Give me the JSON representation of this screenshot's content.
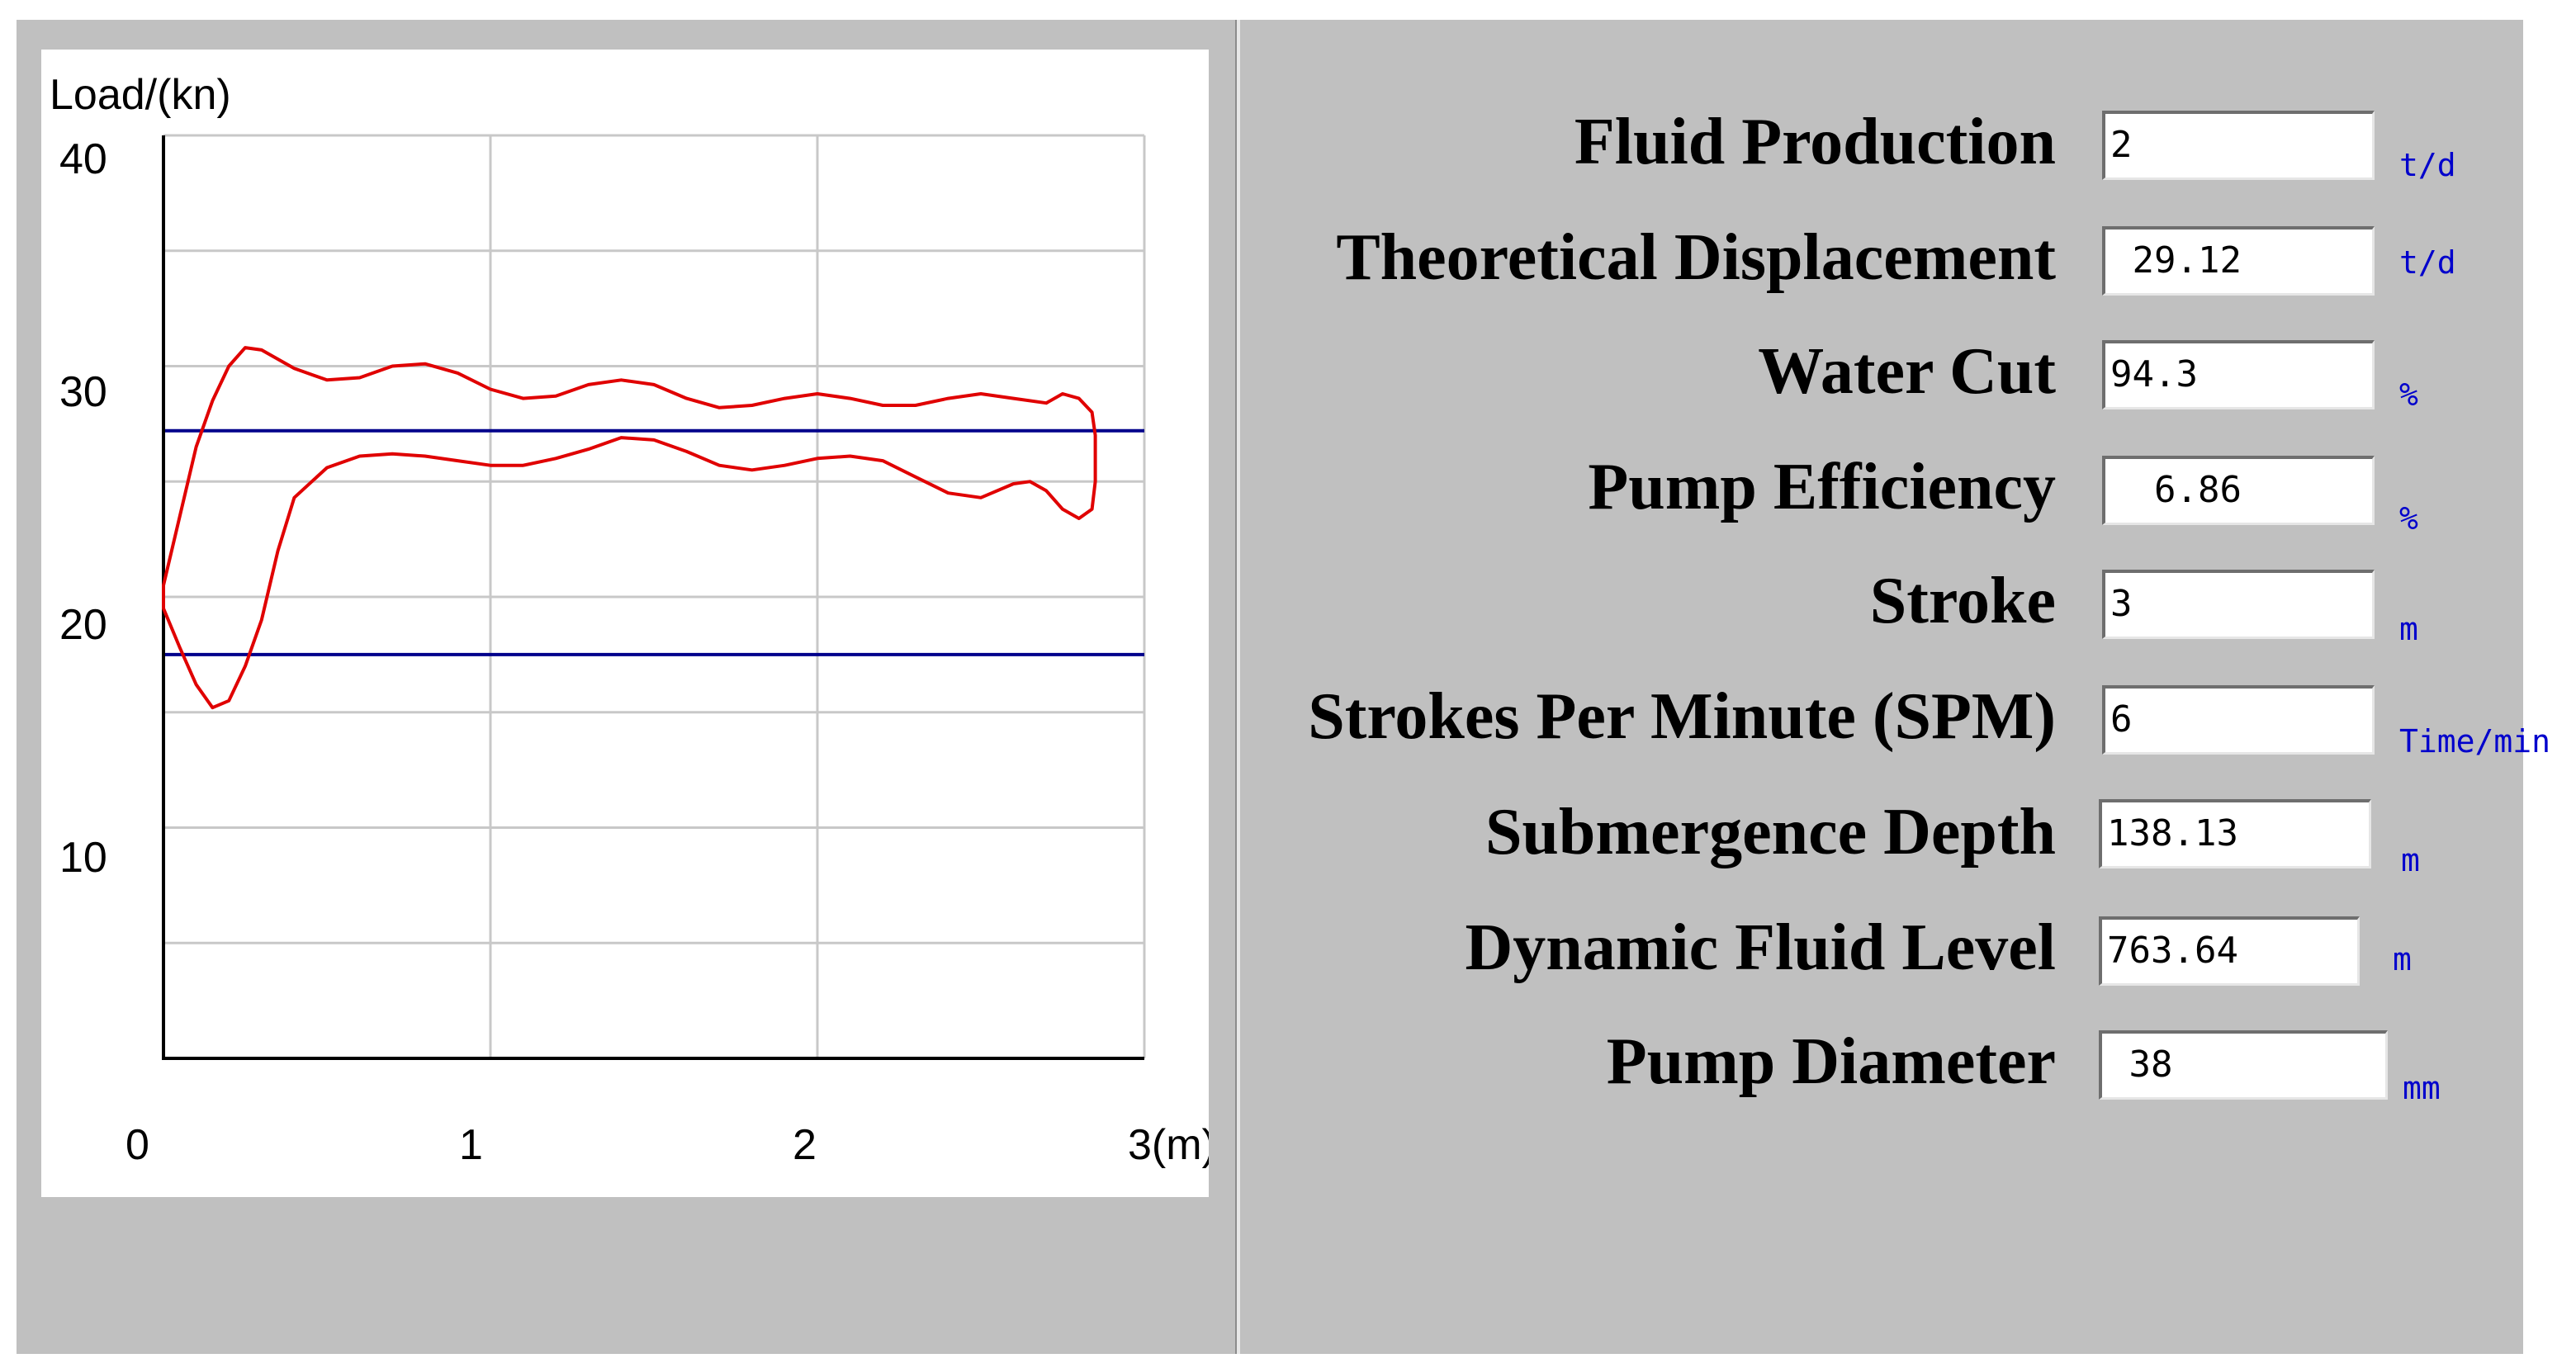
{
  "colors": {
    "window_bg": "#c0c0c0",
    "chart_bg": "#ffffff",
    "grid": "#c8c8c8",
    "reference_line": "#00008b",
    "curve": "#e00000",
    "unit_text": "#0000cc"
  },
  "chart_data": {
    "type": "line",
    "title": "",
    "ylabel": "Load/(kn)",
    "xlabel": "3(m)",
    "xlim": [
      0,
      3
    ],
    "ylim": [
      0,
      40
    ],
    "x_ticks": [
      "0",
      "1",
      "2",
      "3(m)"
    ],
    "y_ticks": [
      "40",
      "30",
      "20",
      "10"
    ],
    "reference_lines": [
      {
        "name": "upper-load-line",
        "y": 27.2
      },
      {
        "name": "lower-load-line",
        "y": 17.5
      }
    ],
    "series": [
      {
        "name": "dynamometer-card",
        "closed": true,
        "points": [
          [
            0.0,
            20.5
          ],
          [
            0.05,
            23.5
          ],
          [
            0.1,
            26.5
          ],
          [
            0.15,
            28.5
          ],
          [
            0.2,
            30.0
          ],
          [
            0.25,
            30.8
          ],
          [
            0.3,
            30.7
          ],
          [
            0.4,
            29.9
          ],
          [
            0.5,
            29.4
          ],
          [
            0.6,
            29.5
          ],
          [
            0.7,
            30.0
          ],
          [
            0.8,
            30.1
          ],
          [
            0.9,
            29.7
          ],
          [
            1.0,
            29.0
          ],
          [
            1.1,
            28.6
          ],
          [
            1.2,
            28.7
          ],
          [
            1.3,
            29.2
          ],
          [
            1.4,
            29.4
          ],
          [
            1.5,
            29.2
          ],
          [
            1.6,
            28.6
          ],
          [
            1.7,
            28.2
          ],
          [
            1.8,
            28.3
          ],
          [
            1.9,
            28.6
          ],
          [
            2.0,
            28.8
          ],
          [
            2.1,
            28.6
          ],
          [
            2.2,
            28.3
          ],
          [
            2.3,
            28.3
          ],
          [
            2.4,
            28.6
          ],
          [
            2.5,
            28.8
          ],
          [
            2.6,
            28.6
          ],
          [
            2.7,
            28.4
          ],
          [
            2.75,
            28.8
          ],
          [
            2.8,
            28.6
          ],
          [
            2.84,
            28.0
          ],
          [
            2.85,
            27.0
          ],
          [
            2.85,
            25.0
          ],
          [
            2.84,
            23.8
          ],
          [
            2.8,
            23.4
          ],
          [
            2.75,
            23.8
          ],
          [
            2.7,
            24.6
          ],
          [
            2.65,
            25.0
          ],
          [
            2.6,
            24.9
          ],
          [
            2.5,
            24.3
          ],
          [
            2.4,
            24.5
          ],
          [
            2.3,
            25.2
          ],
          [
            2.2,
            25.9
          ],
          [
            2.1,
            26.1
          ],
          [
            2.0,
            26.0
          ],
          [
            1.9,
            25.7
          ],
          [
            1.8,
            25.5
          ],
          [
            1.7,
            25.7
          ],
          [
            1.6,
            26.3
          ],
          [
            1.5,
            26.8
          ],
          [
            1.4,
            26.9
          ],
          [
            1.3,
            26.4
          ],
          [
            1.2,
            26.0
          ],
          [
            1.1,
            25.7
          ],
          [
            1.0,
            25.7
          ],
          [
            0.9,
            25.9
          ],
          [
            0.8,
            26.1
          ],
          [
            0.7,
            26.2
          ],
          [
            0.6,
            26.1
          ],
          [
            0.5,
            25.6
          ],
          [
            0.4,
            24.3
          ],
          [
            0.35,
            22.0
          ],
          [
            0.3,
            19.0
          ],
          [
            0.25,
            17.0
          ],
          [
            0.2,
            15.5
          ],
          [
            0.15,
            15.2
          ],
          [
            0.1,
            16.2
          ],
          [
            0.05,
            17.8
          ],
          [
            0.0,
            19.5
          ]
        ]
      }
    ]
  },
  "fields": [
    {
      "label": "Fluid Production",
      "value": "2",
      "unit": "t/d"
    },
    {
      "label": "Theoretical Displacement",
      "value": " 29.12",
      "unit": "t/d"
    },
    {
      "label": "Water Cut",
      "value": "94.3",
      "unit": "%"
    },
    {
      "label": "Pump Efficiency",
      "value": "  6.86",
      "unit": "%"
    },
    {
      "label": "Stroke",
      "value": "3",
      "unit": "m"
    },
    {
      "label": "Strokes Per Minute (SPM)",
      "value": "6",
      "unit": "Time/min"
    },
    {
      "label": "Submergence Depth",
      "value": "138.13",
      "unit": "m"
    },
    {
      "label": "Dynamic Fluid Level",
      "value": "763.64",
      "unit": "m"
    },
    {
      "label": "Pump Diameter",
      "value": " 38",
      "unit": "mm"
    }
  ]
}
